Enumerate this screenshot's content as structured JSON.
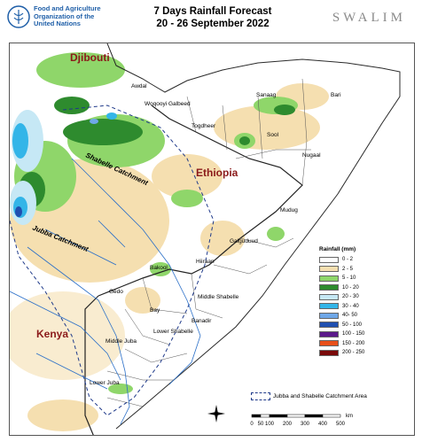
{
  "header": {
    "org_line1": "Food and Agriculture",
    "org_line2": "Organization of the",
    "org_line3": "United Nations",
    "title_line1": "7 Days Rainfall Forecast",
    "title_line2": "20 - 26 September  2022",
    "partner": "SWALIM"
  },
  "map": {
    "countries": [
      "Djibouti",
      "Ethiopia",
      "Kenya"
    ],
    "regions": [
      "Awdal",
      "Woqooyi Galbeed",
      "Togdheer",
      "Sanaag",
      "Bari",
      "Sool",
      "Nugaal",
      "Mudug",
      "Galguduud",
      "Hiiraan",
      "Bakool",
      "Gedo",
      "Bay",
      "Middle Shabelle",
      "Banadir",
      "Lower Shabelle",
      "Middle Juba",
      "Lower Juba"
    ],
    "catchments": [
      "Shabelle Catchment",
      "Jubba Catchment"
    ]
  },
  "legend": {
    "title": "Rainfall (mm)",
    "classes": [
      {
        "label": "0 - 2",
        "color": "#ffffff"
      },
      {
        "label": "2 - 5",
        "color": "#f5dfb0"
      },
      {
        "label": "5 - 10",
        "color": "#8fd66a"
      },
      {
        "label": "10 - 20",
        "color": "#2e8b2e"
      },
      {
        "label": "20 - 30",
        "color": "#c6e8f5"
      },
      {
        "label": "30 - 40",
        "color": "#33b5e8"
      },
      {
        "label": "40- 50",
        "color": "#6fa8e8"
      },
      {
        "label": "50 - 100",
        "color": "#1f4fb0"
      },
      {
        "label": "100 - 150",
        "color": "#5b1a8a"
      },
      {
        "label": "150 - 200",
        "color": "#e8501a"
      },
      {
        "label": "200 - 250",
        "color": "#7a0a0a"
      }
    ],
    "catchment_label": "Jubba and Shabelle Catchment Area",
    "scale_unit": "km",
    "scale_ticks": [
      "0",
      "50",
      "100",
      "200",
      "300",
      "400",
      "500"
    ]
  }
}
